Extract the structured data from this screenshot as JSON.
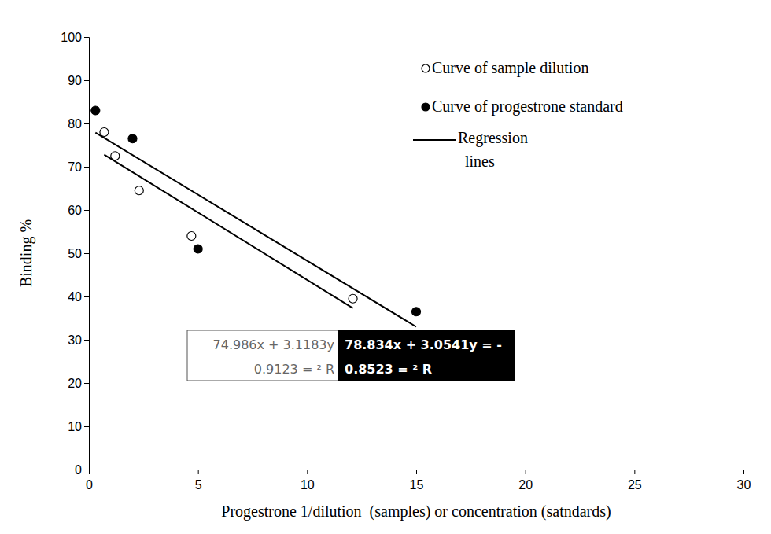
{
  "chart_data": {
    "type": "scatter",
    "x_label": "Progestrone 1/dilution  (samples) or concentration (satndards)",
    "y_label": "Binding %",
    "xlim": [
      0,
      30
    ],
    "xticks": [
      0,
      5,
      10,
      15,
      20,
      25,
      30
    ],
    "ylim": [
      0,
      100
    ],
    "yticks": [
      0,
      10,
      20,
      30,
      40,
      50,
      60,
      70,
      80,
      90,
      100
    ],
    "grid": false,
    "legend": "top-right",
    "series": [
      {
        "name": "Curve of sample dilution",
        "type": "scatter",
        "marker": "circle-open",
        "color": "#000000",
        "x": [
          0.7,
          1.2,
          2.3,
          4.7,
          12.1
        ],
        "values": [
          78,
          72.5,
          64.5,
          54,
          39.5
        ]
      },
      {
        "name": "Curve of progestrone standard",
        "type": "scatter",
        "marker": "circle",
        "color": "#000000",
        "x": [
          0.3,
          2,
          5,
          15
        ],
        "values": [
          83,
          76.5,
          51,
          36.5
        ]
      },
      {
        "name": "Regression lines",
        "type": "line",
        "line_style": "solid",
        "color": "#000000",
        "x": [
          0.3,
          15,
          null,
          0.7,
          12.1
        ],
        "values": [
          77.9,
          33.0,
          null,
          72.8,
          37.3
        ]
      }
    ],
    "annotations": [
      [
        "74.986x + 3.1183y",
        "0.9123 = ² R"
      ],
      [
        "78.834x + 3.0541y = -",
        "0.8523 = ² R"
      ]
    ]
  }
}
